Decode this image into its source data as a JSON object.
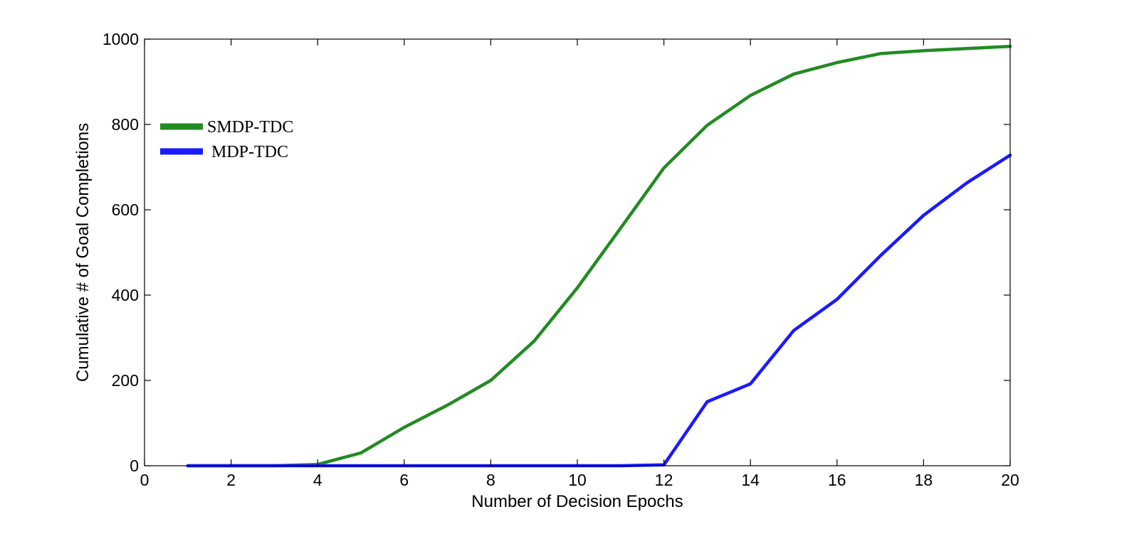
{
  "chart_data": {
    "type": "line",
    "title": "",
    "xlabel": "Number of Decision Epochs",
    "ylabel": "Cumulative # of Goal Completions",
    "xlim": [
      0,
      20
    ],
    "ylim": [
      0,
      1000
    ],
    "xticks": [
      0,
      2,
      4,
      6,
      8,
      10,
      12,
      14,
      16,
      18,
      20
    ],
    "yticks": [
      0,
      200,
      400,
      600,
      800,
      1000
    ],
    "grid": false,
    "legend_position": "upper-left",
    "series": [
      {
        "name": "SMDP-TDC",
        "color": "#228b22",
        "x": [
          1,
          2,
          3,
          4,
          5,
          6,
          7,
          8,
          9,
          10,
          11,
          12,
          13,
          14,
          15,
          16,
          17,
          18,
          19,
          20
        ],
        "y": [
          0,
          0,
          0,
          3,
          30,
          90,
          142,
          200,
          292,
          417,
          557,
          698,
          798,
          868,
          918,
          945,
          966,
          973,
          978,
          983
        ]
      },
      {
        "name": "MDP-TDC",
        "color": "#1a1aff",
        "x": [
          1,
          2,
          3,
          4,
          5,
          6,
          7,
          8,
          9,
          10,
          11,
          12,
          13,
          14,
          15,
          16,
          17,
          18,
          19,
          20
        ],
        "y": [
          0,
          0,
          0,
          0,
          0,
          0,
          0,
          0,
          0,
          0,
          0,
          2,
          150,
          192,
          317,
          390,
          492,
          587,
          663,
          728
        ]
      }
    ]
  }
}
